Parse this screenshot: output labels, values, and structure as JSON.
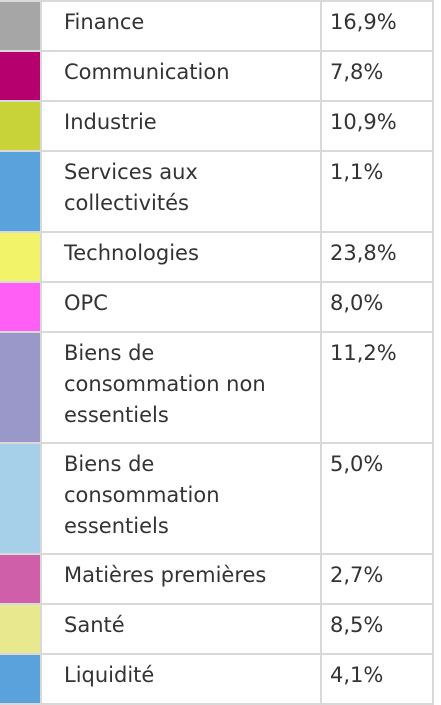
{
  "chart_data": {
    "type": "table",
    "rows": [
      {
        "label": "Finance",
        "value": "16,9%",
        "color": "#a6a6a6"
      },
      {
        "label": "Communication",
        "value": "7,8%",
        "color": "#b5006e"
      },
      {
        "label": "Industrie",
        "value": "10,9%",
        "color": "#c8d33a"
      },
      {
        "label": "Services aux collectivités",
        "value": "1,1%",
        "color": "#5aa2dc"
      },
      {
        "label": "Technologies",
        "value": "23,8%",
        "color": "#f3f36a"
      },
      {
        "label": "OPC",
        "value": "8,0%",
        "color": "#ff5ff5"
      },
      {
        "label": "Biens de consommation non essentiels",
        "value": "11,2%",
        "color": "#9a98c8"
      },
      {
        "label": "Biens de consommation essentiels",
        "value": "5,0%",
        "color": "#a6cfea"
      },
      {
        "label": "Matières premières",
        "value": "2,7%",
        "color": "#cf5fa8"
      },
      {
        "label": "Santé",
        "value": "8,5%",
        "color": "#e8e88f"
      },
      {
        "label": "Liquidité",
        "value": "4,1%",
        "color": "#5aa2dc"
      }
    ]
  }
}
